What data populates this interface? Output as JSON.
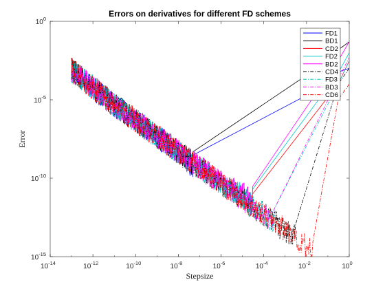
{
  "chart_data": {
    "type": "line",
    "title": "Errors on derivatives for different FD schemes",
    "xlabel": "Stepsize",
    "ylabel": "Error",
    "xscale": "log",
    "yscale": "log",
    "xlim": [
      1e-14,
      1
    ],
    "ylim": [
      1e-15,
      1
    ],
    "xticks": [
      {
        "base": "10",
        "exp": "-14"
      },
      {
        "base": "10",
        "exp": "-12"
      },
      {
        "base": "10",
        "exp": "-10"
      },
      {
        "base": "10",
        "exp": "-8"
      },
      {
        "base": "10",
        "exp": "-6"
      },
      {
        "base": "10",
        "exp": "-4"
      },
      {
        "base": "10",
        "exp": "-2"
      },
      {
        "base": "10",
        "exp": "0"
      }
    ],
    "yticks": [
      {
        "base": "10",
        "exp": "-15"
      },
      {
        "base": "10",
        "exp": "-10"
      },
      {
        "base": "10",
        "exp": "-5"
      },
      {
        "base": "10",
        "exp": "0"
      }
    ],
    "grid": false,
    "legend_position": "top-right",
    "note": "Left portion (stepsize 1e-13 .. minimum) is a noisy round-off band; values are approximate envelope readings.",
    "series": [
      {
        "name": "FD1",
        "color": "#0000ff",
        "dash": "solid",
        "x": [
          1e-13,
          1e-11,
          1e-09,
          1e-08,
          5e-08,
          0.1,
          0.3,
          1
        ],
        "y": [
          0.005,
          3e-05,
          3e-07,
          3e-08,
          3e-09,
          0.0001,
          0.0006,
          0.001
        ]
      },
      {
        "name": "BD1",
        "color": "#000000",
        "dash": "solid",
        "x": [
          1e-13,
          1e-11,
          1e-09,
          1e-08,
          5e-08,
          0.1,
          0.3,
          1
        ],
        "y": [
          0.005,
          3e-05,
          3e-07,
          3e-08,
          5e-09,
          0.003,
          0.015,
          0.05
        ]
      },
      {
        "name": "CD2",
        "color": "#ff0000",
        "dash": "solid",
        "x": [
          1e-13,
          1e-11,
          1e-09,
          1e-07,
          1e-06,
          3e-05,
          0.3,
          1
        ],
        "y": [
          0.005,
          3e-05,
          3e-07,
          3e-09,
          3e-10,
          1e-11,
          0.0001,
          0.003
        ]
      },
      {
        "name": "FD2",
        "color": "#00c8c8",
        "dash": "solid",
        "x": [
          1e-13,
          1e-11,
          1e-09,
          1e-07,
          1e-06,
          3e-05,
          0.3,
          1
        ],
        "y": [
          0.005,
          3e-05,
          3e-07,
          3e-09,
          3e-10,
          2e-11,
          0.0005,
          0.01
        ]
      },
      {
        "name": "BD2",
        "color": "#ff00ff",
        "dash": "solid",
        "x": [
          1e-13,
          1e-11,
          1e-09,
          1e-07,
          1e-06,
          3e-05,
          0.3,
          1
        ],
        "y": [
          0.005,
          3e-05,
          3e-07,
          3e-09,
          3e-10,
          3e-11,
          0.003,
          0.05
        ]
      },
      {
        "name": "CD4",
        "color": "#000000",
        "dash": "dashdot",
        "x": [
          1e-13,
          1e-11,
          1e-09,
          1e-07,
          1e-05,
          0.0001,
          0.001,
          0.003,
          0.3,
          1
        ],
        "y": [
          0.005,
          3e-05,
          3e-07,
          3e-09,
          3e-11,
          3e-12,
          3e-13,
          1e-13,
          0.0001,
          0.001
        ]
      },
      {
        "name": "FD3",
        "color": "#00c8c8",
        "dash": "dashdot",
        "x": [
          1e-13,
          1e-11,
          1e-09,
          1e-07,
          1e-05,
          0.0001,
          0.0003,
          0.3,
          1
        ],
        "y": [
          0.005,
          3e-05,
          3e-07,
          3e-09,
          3e-11,
          3e-12,
          1e-12,
          0.0001,
          0.003
        ]
      },
      {
        "name": "BD3",
        "color": "#ff00ff",
        "dash": "dashdot",
        "x": [
          1e-13,
          1e-11,
          1e-09,
          1e-07,
          1e-05,
          0.0001,
          0.0003,
          0.3,
          1
        ],
        "y": [
          0.005,
          3e-05,
          3e-07,
          3e-09,
          3e-11,
          3e-12,
          1e-12,
          0.0002,
          0.005
        ]
      },
      {
        "name": "CD6",
        "color": "#ff0000",
        "dash": "dashdot",
        "x": [
          1e-13,
          1e-11,
          1e-09,
          1e-07,
          1e-05,
          0.0001,
          0.001,
          0.01,
          0.02,
          0.3,
          1
        ],
        "y": [
          0.005,
          3e-05,
          3e-07,
          3e-09,
          3e-11,
          3e-12,
          3e-13,
          3e-14,
          1e-14,
          1e-05,
          0.0001
        ]
      }
    ]
  }
}
